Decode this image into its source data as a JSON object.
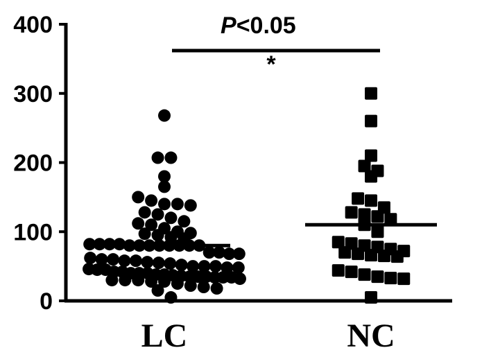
{
  "chart_data": {
    "type": "scatter",
    "categories": [
      "LC",
      "NC"
    ],
    "ylim": [
      0,
      400
    ],
    "yticks": [
      "0",
      "100",
      "200",
      "300",
      "400"
    ],
    "series": [
      {
        "category": "LC",
        "marker": "circle",
        "median": 80,
        "values": [
          268,
          207,
          207,
          180,
          165,
          150,
          145,
          140,
          140,
          138,
          128,
          125,
          120,
          115,
          112,
          110,
          105,
          100,
          98,
          97,
          95,
          92,
          90,
          82,
          82,
          82,
          82,
          80,
          80,
          80,
          80,
          80,
          80,
          80,
          80,
          70,
          70,
          68,
          68,
          62,
          60,
          60,
          58,
          58,
          56,
          55,
          54,
          52,
          50,
          50,
          50,
          48,
          48,
          46,
          45,
          45,
          42,
          42,
          40,
          40,
          40,
          38,
          38,
          37,
          36,
          35,
          35,
          35,
          34,
          34,
          34,
          32,
          30,
          30,
          30,
          28,
          28,
          25,
          22,
          20,
          18,
          15,
          5
        ]
      },
      {
        "category": "NC",
        "marker": "square",
        "median": 110,
        "values": [
          300,
          260,
          210,
          195,
          188,
          180,
          148,
          145,
          135,
          128,
          125,
          122,
          118,
          110,
          100,
          85,
          83,
          80,
          78,
          75,
          72,
          70,
          68,
          66,
          65,
          64,
          44,
          42,
          38,
          35,
          33,
          32,
          5
        ]
      }
    ],
    "annotation": {
      "p_label": "P",
      "p_value_text": "<0.05",
      "star": "*"
    }
  }
}
